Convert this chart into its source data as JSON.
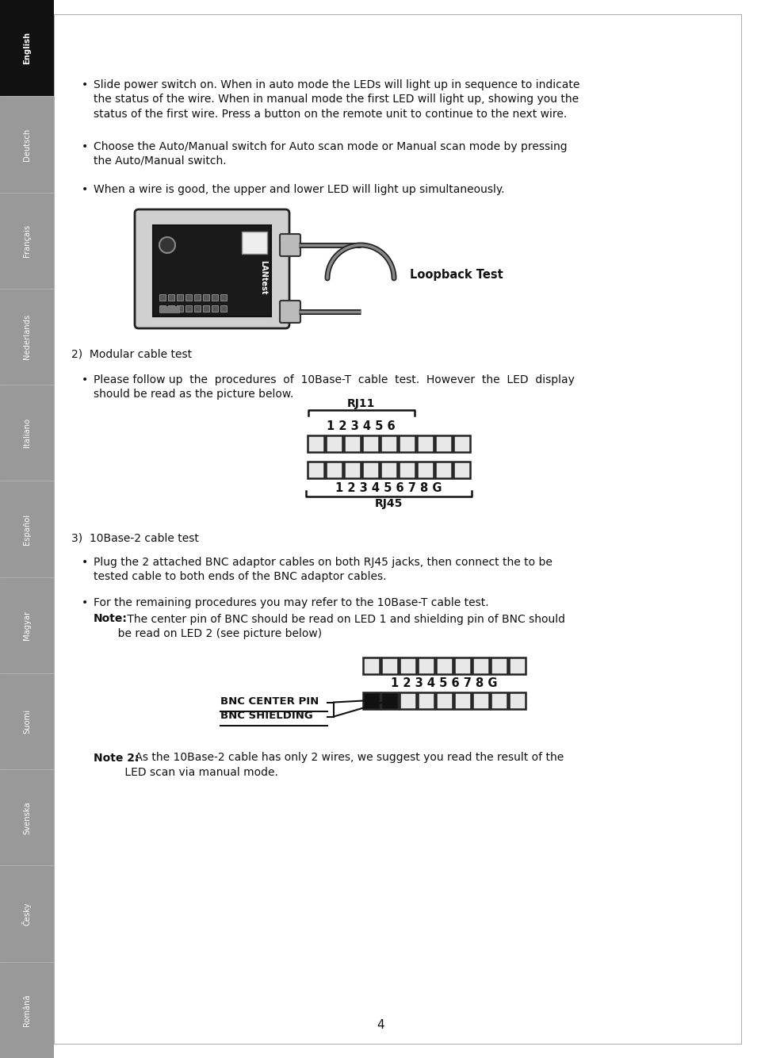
{
  "bg_color": "#ffffff",
  "sidebar_labels": [
    "English",
    "Deutsch",
    "Français",
    "Nederlands",
    "Italiano",
    "Español",
    "Magyar",
    "Suomi",
    "Svenska",
    "Česky",
    "Română"
  ],
  "sidebar_highlight": "English",
  "sidebar_bg": "#888888",
  "sidebar_highlight_bg": "#111111",
  "text_color": "#111111",
  "bullet1_line1": "Slide power switch on. When in auto mode the LEDs will light up in sequence to indicate",
  "bullet1_line2": "the status of the wire. When in manual mode the first LED will light up, showing you the",
  "bullet1_line3": "status of the first wire. Press a button on the remote unit to continue to the next wire.",
  "bullet2_line1": "Choose the Auto/Manual switch for Auto scan mode or Manual scan mode by pressing",
  "bullet2_line2": "the Auto/Manual switch.",
  "bullet3": "When a wire is good, the upper and lower LED will light up simultaneously.",
  "loopback_label": "Loopback Test",
  "section2_header": "2)  Modular cable test",
  "bullet4_line1": "Please follow up  the  procedures  of  10Base-T  cable  test.  However  the  LED  display",
  "bullet4_line2": "should be read as the picture below.",
  "rj11_label": "RJ11",
  "rj11_numbers": "1 2 3 4 5 6",
  "rj45_numbers": "1 2 3 4 5 6 7 8 G",
  "rj45_label": "RJ45",
  "section3_header": "3)  10Base-2 cable test",
  "bullet5_line1": "Plug the 2 attached BNC adaptor cables on both RJ45 jacks, then connect the to be",
  "bullet5_line2": "tested cable to both ends of the BNC adaptor cables.",
  "bullet6": "For the remaining procedures you may refer to the 10Base-T cable test.",
  "note1_bold": "Note:",
  "note1_text": " The center pin of BNC should be read on LED 1 and shielding pin of BNC should",
  "note1_line2": "       be read on LED 2 (see picture below)",
  "bnc_numbers": "1 2 3 4 5 6 7 8 G",
  "bnc_center_pin_label": "BNC CENTER PIN",
  "bnc_shielding_label": "BNC SHIELDING",
  "note2_bold": "Note 2:",
  "note2_text": " As the 10Base-2 cable has only 2 wires, we suggest you read the result of the",
  "note2_line2": "         LED scan via manual mode.",
  "page_number": "4"
}
